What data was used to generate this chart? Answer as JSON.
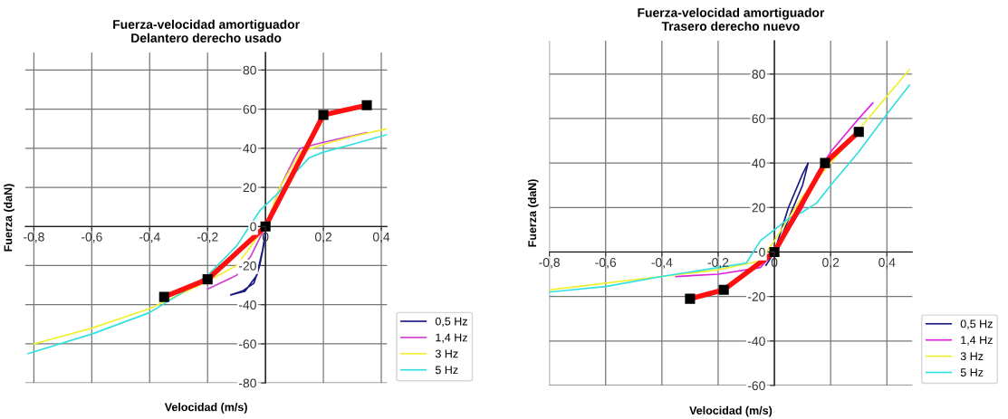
{
  "chart_data": [
    {
      "type": "line",
      "title": "Fuerza-velocidad amortiguador",
      "subtitle": "Delantero derecho usado",
      "xlabel": "Velocidad (m/s)",
      "ylabel": "Fuerza (daN)",
      "xlim": [
        -0.83,
        0.42
      ],
      "ylim": [
        -80,
        89
      ],
      "xticks": [
        {
          "value": -0.8,
          "label": "-0,8"
        },
        {
          "value": -0.6,
          "label": "-0,6"
        },
        {
          "value": -0.4,
          "label": "-0,4"
        },
        {
          "value": -0.2,
          "label": "-0,2"
        },
        {
          "value": 0,
          "label": "0"
        },
        {
          "value": 0.2,
          "label": "0,2"
        },
        {
          "value": 0.4,
          "label": "0,4"
        }
      ],
      "yticks": [
        -80,
        -60,
        -40,
        -20,
        0,
        20,
        40,
        60,
        80
      ],
      "grid": true,
      "legend": "bottom right",
      "series": [
        {
          "name": "0,5 Hz",
          "color": "#1a1a80",
          "x": [
            0,
            -0.01,
            -0.03,
            -0.07,
            -0.12,
            -0.08,
            -0.04,
            -0.02,
            0
          ],
          "values": [
            -3,
            -12,
            -25,
            -33,
            -35,
            -33,
            -29,
            -20,
            -5
          ]
        },
        {
          "name": "1,4 Hz",
          "color": "#d040d0",
          "x": [
            -0.2,
            -0.1,
            -0.05,
            0,
            0.05,
            0.1,
            0.12,
            0.2,
            0.35
          ],
          "values": [
            -32,
            -25,
            -15,
            0,
            20,
            35,
            40,
            43,
            48
          ]
        },
        {
          "name": "3 Hz",
          "color": "#f0f030",
          "x": [
            -0.8,
            -0.6,
            -0.4,
            -0.3,
            -0.2,
            -0.1,
            0,
            0.05,
            0.12,
            0.2,
            0.3,
            0.42
          ],
          "values": [
            -60,
            -52,
            -42,
            -35,
            -28,
            -20,
            0,
            20,
            38,
            42,
            46,
            50
          ]
        },
        {
          "name": "5 Hz",
          "color": "#30e0e0",
          "x": [
            -0.82,
            -0.6,
            -0.4,
            -0.3,
            -0.2,
            -0.1,
            -0.02,
            0.05,
            0.1,
            0.15,
            0.2,
            0.3,
            0.42
          ],
          "values": [
            -65,
            -55,
            -44,
            -35,
            -25,
            -10,
            8,
            18,
            27,
            35,
            38,
            42,
            47
          ]
        },
        {
          "color": "#ff1010",
          "marker": "square",
          "x": [
            -0.35,
            -0.2,
            0,
            0.2,
            0.35
          ],
          "values": [
            -36,
            -27,
            0,
            57,
            62
          ]
        }
      ]
    },
    {
      "type": "line",
      "title": "Fuerza-velocidad amortiguador",
      "subtitle": "Trasero derecho nuevo",
      "xlabel": "Velocidad (m/s)",
      "ylabel": "Fuerza (daN)",
      "xlim": [
        -0.8,
        0.49
      ],
      "ylim": [
        -60,
        95
      ],
      "xticks": [
        {
          "value": -0.8,
          "label": "-0,8"
        },
        {
          "value": -0.6,
          "label": "-0,6"
        },
        {
          "value": -0.4,
          "label": "-0,4"
        },
        {
          "value": -0.2,
          "label": "-0,2"
        },
        {
          "value": 0,
          "label": "0"
        },
        {
          "value": 0.2,
          "label": "0,2"
        },
        {
          "value": 0.4,
          "label": "0,4"
        }
      ],
      "yticks": [
        -60,
        -40,
        -20,
        0,
        20,
        40,
        60,
        80
      ],
      "grid": true,
      "legend": "bottom right",
      "series": [
        {
          "name": "0,5 Hz",
          "color": "#1a1a80",
          "x": [
            -0.03,
            0,
            0.05,
            0.1,
            0.12,
            0.1,
            0.06,
            0.02,
            0
          ],
          "values": [
            -6,
            0,
            20,
            35,
            40,
            30,
            18,
            5,
            -2
          ]
        },
        {
          "name": "1,4 Hz",
          "color": "#e020e0",
          "x": [
            -0.35,
            -0.2,
            -0.05,
            0,
            0.05,
            0.1,
            0.15,
            0.2,
            0.3,
            0.35
          ],
          "values": [
            -11,
            -10,
            -7,
            0,
            10,
            20,
            35,
            45,
            60,
            67
          ]
        },
        {
          "name": "3 Hz",
          "color": "#f0f030",
          "x": [
            -0.8,
            -0.6,
            -0.4,
            -0.2,
            -0.05,
            0,
            0.05,
            0.1,
            0.2,
            0.3,
            0.4,
            0.48
          ],
          "values": [
            -17,
            -14,
            -11,
            -8,
            -4,
            5,
            15,
            25,
            40,
            55,
            70,
            82
          ]
        },
        {
          "name": "5 Hz",
          "color": "#30e0e0",
          "x": [
            -0.8,
            -0.6,
            -0.4,
            -0.2,
            -0.1,
            -0.05,
            0,
            0.05,
            0.1,
            0.15,
            0.2,
            0.3,
            0.4,
            0.48
          ],
          "values": [
            -18,
            -15.5,
            -11,
            -7,
            -5,
            5,
            10,
            15,
            18,
            22,
            30,
            45,
            62,
            75
          ]
        },
        {
          "color": "#ff1010",
          "marker": "square",
          "x": [
            -0.3,
            -0.18,
            0,
            0.18,
            0.3
          ],
          "values": [
            -21,
            -17,
            0,
            40,
            54
          ]
        }
      ]
    }
  ]
}
